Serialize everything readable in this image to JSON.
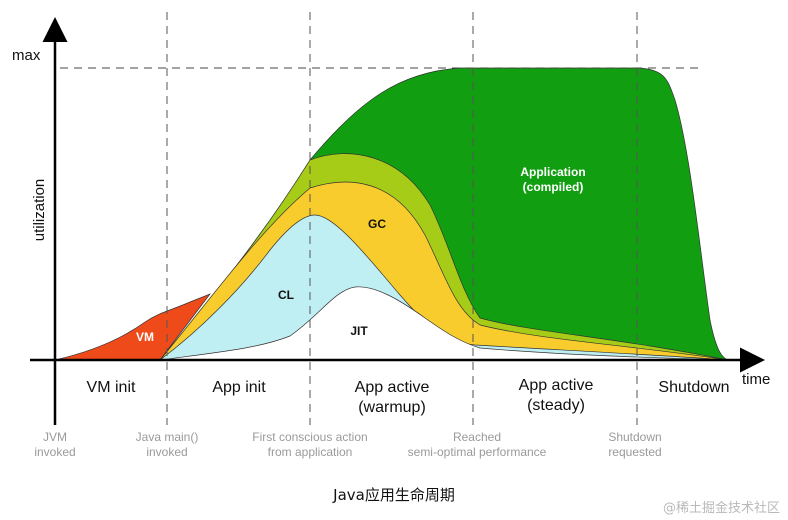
{
  "axis": {
    "y_max_label": "max",
    "y_label": "utilization",
    "x_label": "time"
  },
  "phases": [
    {
      "label": "VM init"
    },
    {
      "label": "App init"
    },
    {
      "label": "App active",
      "label2": "(warmup)"
    },
    {
      "label": "App active",
      "label2": "(steady)"
    },
    {
      "label": "Shutdown"
    }
  ],
  "events": [
    {
      "line1": "JVM",
      "line2": "invoked"
    },
    {
      "line1": "Java main()",
      "line2": "invoked"
    },
    {
      "line1": "First conscious action",
      "line2": "from application"
    },
    {
      "line1": "Reached",
      "line2": "semi-optimal performance"
    },
    {
      "line1": "Shutdown",
      "line2": "requested"
    }
  ],
  "areas": {
    "vm": {
      "label": "VM",
      "color": "#ee4a1a"
    },
    "cl": {
      "label": "CL",
      "color": "#bfeef3"
    },
    "jit": {
      "label": "JIT",
      "color": "#ffffff"
    },
    "gc": {
      "label": "GC",
      "color": "#f7cc2c"
    },
    "lightgreen": {
      "color": "#a6cc17"
    },
    "app": {
      "label": "Application",
      "label2": "(compiled)",
      "color": "#119e11"
    }
  },
  "caption": "Java应用生命周期",
  "watermark": "@稀土掘金技术社区"
}
